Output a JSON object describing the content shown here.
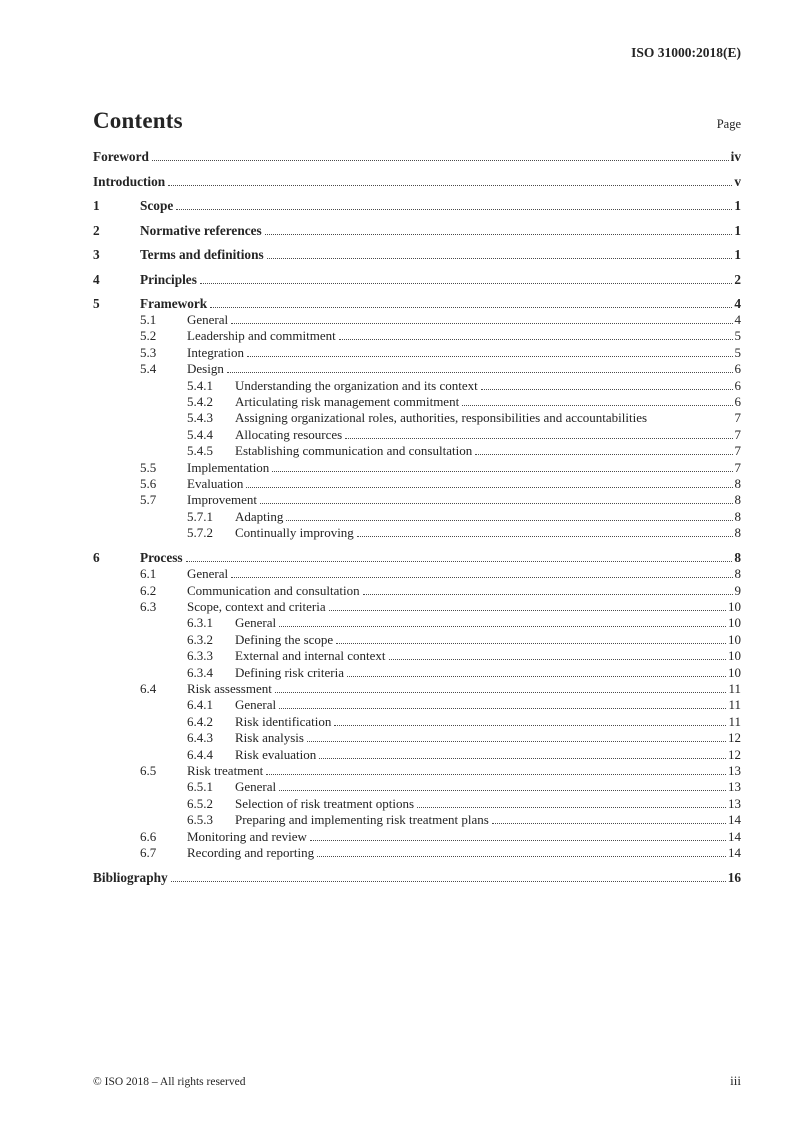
{
  "page": {
    "header_right": "ISO 31000:2018(E)",
    "title": "Contents",
    "page_label": "Page",
    "footer_left": "© ISO 2018 – All rights reserved",
    "footer_right": "iii"
  },
  "toc": {
    "entries": [
      {
        "number": "",
        "title": "Foreword",
        "page": "iv",
        "level": 0,
        "bold": true
      },
      {
        "number": "",
        "title": "Introduction",
        "page": "v",
        "level": 0,
        "bold": true
      },
      {
        "number": "1",
        "title": "Scope",
        "page": "1",
        "level": 1,
        "bold": true
      },
      {
        "number": "2",
        "title": "Normative references",
        "page": "1",
        "level": 1,
        "bold": true
      },
      {
        "number": "3",
        "title": "Terms and definitions",
        "page": "1",
        "level": 1,
        "bold": true
      },
      {
        "number": "4",
        "title": "Principles",
        "page": "2",
        "level": 1,
        "bold": true
      },
      {
        "number": "5",
        "title": "Framework",
        "page": "4",
        "level": 1,
        "bold": true
      },
      {
        "number": "5.1",
        "title": "General",
        "page": "4",
        "level": 2
      },
      {
        "number": "5.2",
        "title": "Leadership and commitment",
        "page": "5",
        "level": 2
      },
      {
        "number": "5.3",
        "title": "Integration",
        "page": "5",
        "level": 2
      },
      {
        "number": "5.4",
        "title": "Design",
        "page": "6",
        "level": 2
      },
      {
        "number": "5.4.1",
        "title": "Understanding the organization and its context",
        "page": "6",
        "level": 3
      },
      {
        "number": "5.4.2",
        "title": "Articulating risk management commitment",
        "page": "6",
        "level": 3
      },
      {
        "number": "5.4.3",
        "title": "Assigning organizational roles, authorities, responsibilities and accountabilities",
        "page": "7",
        "level": 3,
        "no_dots": true
      },
      {
        "number": "5.4.4",
        "title": "Allocating resources",
        "page": "7",
        "level": 3
      },
      {
        "number": "5.4.5",
        "title": "Establishing communication and consultation",
        "page": "7",
        "level": 3
      },
      {
        "number": "5.5",
        "title": "Implementation",
        "page": "7",
        "level": 2
      },
      {
        "number": "5.6",
        "title": "Evaluation",
        "page": "8",
        "level": 2
      },
      {
        "number": "5.7",
        "title": "Improvement",
        "page": "8",
        "level": 2
      },
      {
        "number": "5.7.1",
        "title": "Adapting",
        "page": "8",
        "level": 3
      },
      {
        "number": "5.7.2",
        "title": "Continually improving",
        "page": "8",
        "level": 3
      },
      {
        "number": "6",
        "title": "Process",
        "page": "8",
        "level": 1,
        "bold": true
      },
      {
        "number": "6.1",
        "title": "General",
        "page": "8",
        "level": 2
      },
      {
        "number": "6.2",
        "title": "Communication and consultation",
        "page": "9",
        "level": 2
      },
      {
        "number": "6.3",
        "title": "Scope, context and criteria",
        "page": "10",
        "level": 2
      },
      {
        "number": "6.3.1",
        "title": "General",
        "page": "10",
        "level": 3
      },
      {
        "number": "6.3.2",
        "title": "Defining the scope",
        "page": "10",
        "level": 3
      },
      {
        "number": "6.3.3",
        "title": "External and internal context",
        "page": "10",
        "level": 3
      },
      {
        "number": "6.3.4",
        "title": "Defining risk criteria",
        "page": "10",
        "level": 3
      },
      {
        "number": "6.4",
        "title": "Risk assessment",
        "page": "11",
        "level": 2
      },
      {
        "number": "6.4.1",
        "title": "General",
        "page": "11",
        "level": 3
      },
      {
        "number": "6.4.2",
        "title": "Risk identification",
        "page": "11",
        "level": 3
      },
      {
        "number": "6.4.3",
        "title": "Risk analysis",
        "page": "12",
        "level": 3
      },
      {
        "number": "6.4.4",
        "title": "Risk evaluation",
        "page": "12",
        "level": 3
      },
      {
        "number": "6.5",
        "title": "Risk treatment",
        "page": "13",
        "level": 2
      },
      {
        "number": "6.5.1",
        "title": "General",
        "page": "13",
        "level": 3
      },
      {
        "number": "6.5.2",
        "title": "Selection of risk treatment options",
        "page": "13",
        "level": 3
      },
      {
        "number": "6.5.3",
        "title": "Preparing and implementing risk treatment plans",
        "page": "14",
        "level": 3
      },
      {
        "number": "6.6",
        "title": "Monitoring and review",
        "page": "14",
        "level": 2
      },
      {
        "number": "6.7",
        "title": "Recording and reporting",
        "page": "14",
        "level": 2
      },
      {
        "number": "",
        "title": "Bibliography",
        "page": "16",
        "level": 0,
        "bold": true
      }
    ]
  }
}
